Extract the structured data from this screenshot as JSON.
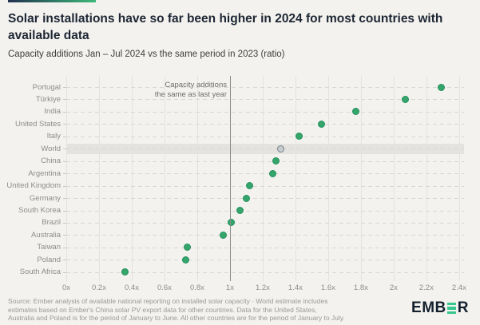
{
  "page": {
    "background": "#f3f2ef"
  },
  "accent_bar": {
    "color_from": "#223150",
    "color_to": "#3db978"
  },
  "header": {
    "title": "Solar installations have so far been higher in 2024 for most countries with available data",
    "subtitle": "Capacity additions Jan – Jul 2024 vs the same period in 2023 (ratio)"
  },
  "chart_data": {
    "type": "scatter",
    "subtype": "horizontal-dot-plot",
    "categories": [
      "Portugal",
      "Türkiye",
      "India",
      "United States",
      "Italy",
      "World",
      "China",
      "Argentina",
      "United Kingdom",
      "Germany",
      "South Korea",
      "Brazil",
      "Australia",
      "Taiwan",
      "Poland",
      "South Africa"
    ],
    "values": [
      2.29,
      2.07,
      1.77,
      1.56,
      1.42,
      1.31,
      1.28,
      1.26,
      1.12,
      1.1,
      1.06,
      1.01,
      0.96,
      0.74,
      0.73,
      0.36
    ],
    "highlight_category": "World",
    "xlim": [
      0,
      2.43
    ],
    "x_ticks": [
      {
        "value": 0,
        "label": "0x"
      },
      {
        "value": 0.2,
        "label": "0.2x"
      },
      {
        "value": 0.4,
        "label": "0.4x"
      },
      {
        "value": 0.6,
        "label": "0.6x"
      },
      {
        "value": 0.8,
        "label": "0.8x"
      },
      {
        "value": 1,
        "label": "1x"
      },
      {
        "value": 1.2,
        "label": "1.2x"
      },
      {
        "value": 1.4,
        "label": "1.4x"
      },
      {
        "value": 1.6,
        "label": "1.6x"
      },
      {
        "value": 1.8,
        "label": "1.8x"
      },
      {
        "value": 2,
        "label": "2x"
      },
      {
        "value": 2.2,
        "label": "2.2x"
      },
      {
        "value": 2.4,
        "label": "2.4x"
      }
    ],
    "reference_line": {
      "value": 1,
      "label_line1": "Capacity additions",
      "label_line2": "the same as last year"
    },
    "grid": "both",
    "legend": "none",
    "dot_colors": {
      "default_fill": "#35a56c",
      "default_border": "#23915c",
      "highlight_fill": "#c7ccce",
      "highlight_border": "#78838a"
    }
  },
  "footer": {
    "line1": "Source: Ember analysis of available national reporting on installed solar capacity · World estimate includes",
    "line2": "estimates based on Ember's China solar PV export data for other countries. Data for the United States,",
    "line3": "Australia and Poland is for the period of January to June. All other countries are for the period of January to July."
  },
  "logo": {
    "text_left": "EMB",
    "text_right": "R"
  }
}
